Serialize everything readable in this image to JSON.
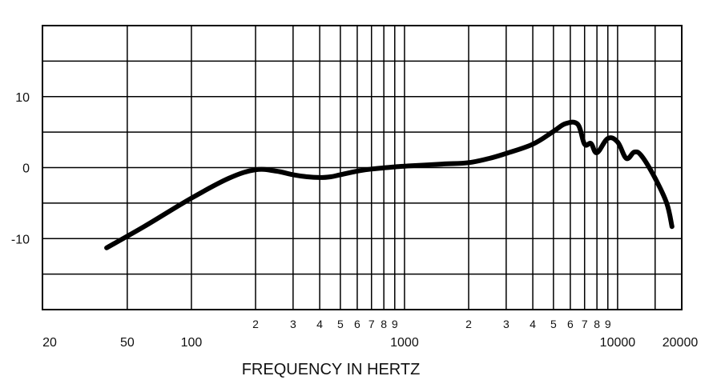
{
  "chart_data": {
    "type": "line",
    "xscale": "log",
    "xlim": [
      20,
      20000
    ],
    "ylim": [
      -20,
      20
    ],
    "grid": true,
    "xlabel": "FREQUENCY IN HERTZ",
    "ylabel": "",
    "title": "",
    "y_ticks": [
      {
        "value": 10,
        "label": "10"
      },
      {
        "value": 0,
        "label": "0"
      },
      {
        "value": -10,
        "label": "-10"
      }
    ],
    "x_major_ticks": [
      {
        "value": 20,
        "label": "20"
      },
      {
        "value": 50,
        "label": "50"
      },
      {
        "value": 100,
        "label": "100"
      },
      {
        "value": 1000,
        "label": "1000"
      },
      {
        "value": 10000,
        "label": "10000"
      },
      {
        "value": 20000,
        "label": "20000"
      }
    ],
    "x_minor_ticks": [
      {
        "value": 200,
        "label": "2"
      },
      {
        "value": 300,
        "label": "3"
      },
      {
        "value": 400,
        "label": "4"
      },
      {
        "value": 500,
        "label": "5"
      },
      {
        "value": 600,
        "label": "6"
      },
      {
        "value": 700,
        "label": "7"
      },
      {
        "value": 800,
        "label": "8"
      },
      {
        "value": 900,
        "label": "9"
      },
      {
        "value": 2000,
        "label": "2"
      },
      {
        "value": 3000,
        "label": "3"
      },
      {
        "value": 4000,
        "label": "4"
      },
      {
        "value": 5000,
        "label": "5"
      },
      {
        "value": 6000,
        "label": "6"
      },
      {
        "value": 7000,
        "label": "7"
      },
      {
        "value": 8000,
        "label": "8"
      },
      {
        "value": 9000,
        "label": "9"
      }
    ],
    "x_gridlines": [
      50,
      100,
      200,
      300,
      400,
      500,
      600,
      700,
      800,
      900,
      1000,
      2000,
      3000,
      4000,
      5000,
      6000,
      7000,
      8000,
      9000,
      10000,
      15000
    ],
    "y_gridlines": [
      -15,
      -10,
      -5,
      0,
      5,
      10,
      15
    ],
    "series": [
      {
        "color": "#000000",
        "points": [
          [
            40,
            -11.3
          ],
          [
            60,
            -8.3
          ],
          [
            100,
            -4.3
          ],
          [
            150,
            -1.5
          ],
          [
            200,
            -0.3
          ],
          [
            250,
            -0.5
          ],
          [
            300,
            -1.0
          ],
          [
            350,
            -1.3
          ],
          [
            400,
            -1.4
          ],
          [
            450,
            -1.3
          ],
          [
            500,
            -1.0
          ],
          [
            600,
            -0.5
          ],
          [
            700,
            -0.2
          ],
          [
            900,
            0.1
          ],
          [
            1000,
            0.2
          ],
          [
            1500,
            0.5
          ],
          [
            2000,
            0.7
          ],
          [
            2500,
            1.3
          ],
          [
            3000,
            2.0
          ],
          [
            4000,
            3.3
          ],
          [
            5000,
            5.1
          ],
          [
            5700,
            6.2
          ],
          [
            6500,
            6.1
          ],
          [
            7000,
            3.3
          ],
          [
            7500,
            3.4
          ],
          [
            8000,
            2.1
          ],
          [
            9000,
            4.1
          ],
          [
            10000,
            3.6
          ],
          [
            11000,
            1.3
          ],
          [
            12000,
            2.2
          ],
          [
            13000,
            1.6
          ],
          [
            15000,
            -1.5
          ],
          [
            17000,
            -5.0
          ],
          [
            18000,
            -8.3
          ]
        ]
      }
    ]
  }
}
